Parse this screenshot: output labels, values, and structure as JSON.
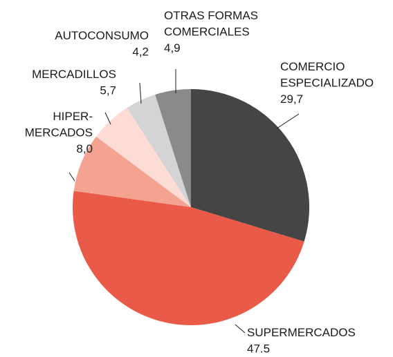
{
  "chart_data": {
    "type": "pie",
    "categories": [
      [
        "COMERCIO",
        "ESPECIALIZADO"
      ],
      [
        "SUPERMERCADOS"
      ],
      [
        "HIPER-",
        "MERCADOS"
      ],
      [
        "MERCADILLOS"
      ],
      [
        "AUTOCONSUMO"
      ],
      [
        "OTRAS FORMAS",
        "COMERCIALES"
      ]
    ],
    "values": [
      29.7,
      47.5,
      8.0,
      5.7,
      4.2,
      4.9
    ],
    "value_labels": [
      "29,7",
      "47.5",
      "8,0",
      "5,7",
      "4,2",
      "4,9"
    ],
    "colors": [
      "#454545",
      "#ea5a48",
      "#f3a390",
      "#fcdcd5",
      "#d4d4d6",
      "#8a8a8a"
    ]
  }
}
